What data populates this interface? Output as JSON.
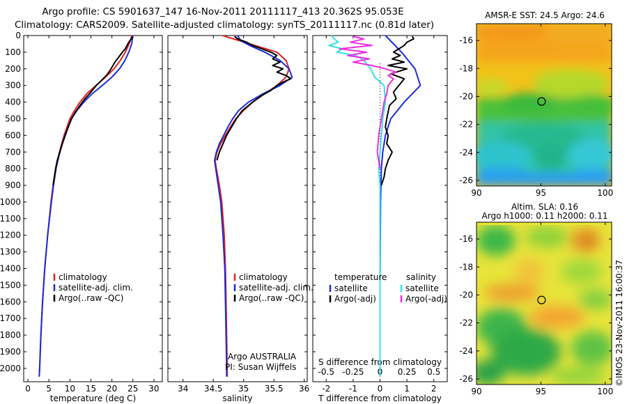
{
  "figure": {
    "title_line1": "Argo profile: CS 5901637_147 16-Nov-2011 20111117_413 20.362S 95.053E",
    "title_line2": "Climatology: CARS2009. Satellite-adjusted climatology: synTS_20111117.nc (0.81d later)",
    "credit": "©IMOS 23-Nov-2011 16:00:37"
  },
  "colors": {
    "climatology": "#e0201c",
    "satellite": "#1a2bd6",
    "argo": "#000000",
    "satellite_s": "#35e0e8",
    "argo_s": "#ee2ee0"
  },
  "chart_data": [
    {
      "type": "line",
      "panel": "temperature",
      "xlabel": "temperature (deg C)",
      "ylabel": "",
      "xlim": [
        -1,
        32
      ],
      "ylim": [
        2080,
        0
      ],
      "xticks": [
        0,
        5,
        10,
        15,
        20,
        25,
        30
      ],
      "yticks": [
        0,
        100,
        200,
        300,
        400,
        500,
        600,
        700,
        800,
        900,
        1000,
        1100,
        1200,
        1300,
        1400,
        1500,
        1600,
        1700,
        1800,
        1900,
        2000
      ],
      "legend": [
        "climatology",
        "satellite-adj. clim.",
        "Argo(..raw -QC)"
      ],
      "series": [
        {
          "name": "climatology",
          "role": "climatology",
          "depth": [
            0,
            50,
            100,
            150,
            200,
            250,
            300,
            350,
            400,
            450,
            500,
            600,
            700,
            800,
            900,
            1000,
            1200,
            1400,
            1600,
            1800,
            2000,
            2050
          ],
          "values": [
            24.8,
            24.1,
            23.2,
            22.0,
            20.5,
            18.5,
            16.2,
            14.0,
            12.4,
            11.1,
            10.0,
            8.6,
            7.5,
            6.6,
            6.0,
            5.5,
            4.7,
            4.0,
            3.5,
            3.1,
            2.8,
            2.7
          ]
        },
        {
          "name": "satellite-adj. clim.",
          "role": "satellite",
          "depth": [
            0,
            50,
            100,
            150,
            200,
            250,
            300,
            350,
            400,
            450,
            500,
            600,
            700,
            800,
            900,
            1000,
            1200,
            1400,
            1600,
            1800,
            2000,
            2050
          ],
          "values": [
            25.0,
            24.7,
            24.0,
            23.1,
            21.8,
            20.0,
            17.7,
            15.3,
            13.3,
            11.7,
            10.4,
            8.8,
            7.6,
            6.7,
            6.1,
            5.6,
            4.7,
            4.0,
            3.5,
            3.1,
            2.8,
            2.7
          ]
        },
        {
          "name": "Argo(..raw -QC)",
          "role": "argo",
          "depth": [
            5,
            20,
            40,
            60,
            80,
            100,
            130,
            160,
            200,
            230,
            260,
            300,
            340,
            380,
            420,
            460,
            500,
            550,
            600,
            650,
            700,
            750,
            800,
            850,
            900
          ],
          "values": [
            24.9,
            24.6,
            24.0,
            23.6,
            23.2,
            22.5,
            21.6,
            20.7,
            19.8,
            19.0,
            17.9,
            16.3,
            15.0,
            13.6,
            12.4,
            11.3,
            10.4,
            9.6,
            8.9,
            8.2,
            7.6,
            7.0,
            6.6,
            6.3,
            6.0
          ]
        }
      ]
    },
    {
      "type": "line",
      "panel": "salinity",
      "xlabel": "salinity",
      "ylabel": "",
      "xlim": [
        33.75,
        36.05
      ],
      "ylim": [
        2080,
        0
      ],
      "xticks": [
        34,
        34.5,
        35,
        35.5,
        36
      ],
      "xtick_labels": [
        "34",
        "34.5",
        "35",
        "35.5",
        "36"
      ],
      "legend": [
        "climatology",
        "satellite-adj. clim.",
        "Argo(..raw -QC)"
      ],
      "annotation": [
        "Argo AUSTRALIA",
        "PI: Susan Wijffels"
      ],
      "series": [
        {
          "name": "climatology",
          "role": "climatology",
          "depth": [
            0,
            50,
            100,
            150,
            200,
            250,
            300,
            350,
            400,
            450,
            500,
            550,
            600,
            650,
            700,
            750,
            800,
            900,
            1000,
            1200,
            1400,
            1600,
            1800,
            2000,
            2050
          ],
          "values": [
            34.65,
            35.1,
            35.55,
            35.7,
            35.75,
            35.7,
            35.55,
            35.35,
            35.15,
            35.0,
            34.87,
            34.78,
            34.7,
            34.62,
            34.56,
            34.53,
            34.55,
            34.6,
            34.64,
            34.68,
            34.7,
            34.71,
            34.72,
            34.73,
            34.73
          ]
        },
        {
          "name": "satellite-adj. clim.",
          "role": "satellite",
          "depth": [
            0,
            30,
            60,
            100,
            150,
            200,
            250,
            300,
            350,
            400,
            450,
            500,
            550,
            600,
            650,
            700,
            750,
            800,
            900,
            1000,
            1200,
            1400,
            1600,
            1800,
            2000,
            2050
          ],
          "values": [
            34.9,
            34.95,
            35.1,
            35.35,
            35.6,
            35.75,
            35.8,
            35.6,
            35.32,
            35.08,
            34.92,
            34.82,
            34.74,
            34.67,
            34.6,
            34.55,
            34.52,
            34.54,
            34.58,
            34.62,
            34.66,
            34.69,
            34.7,
            34.71,
            34.72,
            34.72
          ]
        },
        {
          "name": "Argo(..raw -QC)",
          "role": "argo",
          "depth": [
            5,
            20,
            40,
            60,
            80,
            100,
            120,
            140,
            160,
            180,
            200,
            220,
            240,
            260,
            280,
            300,
            330,
            360,
            400,
            450,
            500,
            550,
            600,
            650,
            700,
            750
          ],
          "values": [
            34.85,
            34.9,
            35.05,
            35.15,
            35.3,
            35.45,
            35.55,
            35.48,
            35.6,
            35.48,
            35.65,
            35.55,
            35.7,
            35.78,
            35.65,
            35.55,
            35.45,
            35.3,
            35.15,
            34.98,
            34.88,
            34.8,
            34.72,
            34.66,
            34.6,
            34.56
          ]
        }
      ]
    },
    {
      "type": "line",
      "panel": "difference",
      "xlabel": "T difference from climatology",
      "xlabel_top": "S difference from climatology",
      "ylabel": "",
      "xlim": [
        -2.5,
        2.5
      ],
      "ylim": [
        2080,
        0
      ],
      "xticks_T": [
        -2,
        -1,
        0,
        1,
        2
      ],
      "xticks_S": [
        -0.5,
        -0.25,
        0,
        0.25,
        0.5
      ],
      "xtick_labels_T": [
        "-2",
        "-1",
        "0",
        "1",
        "2"
      ],
      "xtick_labels_S": [
        "-0.5",
        "-0.25",
        "0",
        "0.25",
        "0.5"
      ],
      "legend_T": {
        "title": "temperature",
        "items": [
          "satellite",
          "Argo(-adj)"
        ]
      },
      "legend_S": {
        "title": "salinity",
        "items": [
          "satellite",
          "Argo(-adj)"
        ]
      },
      "series": [
        {
          "name": "satellite",
          "role": "satellite",
          "group": "temperature",
          "depth": [
            0,
            100,
            200,
            300,
            400,
            500,
            600,
            700,
            800,
            1000,
            1500,
            2000,
            2050
          ],
          "values": [
            0.2,
            0.8,
            1.3,
            1.5,
            0.9,
            0.4,
            0.2,
            0.1,
            0.05,
            0.02,
            0.0,
            0.0,
            0.0
          ]
        },
        {
          "name": "Argo(-adj)",
          "role": "argo",
          "group": "temperature",
          "depth": [
            5,
            20,
            40,
            60,
            80,
            100,
            120,
            140,
            160,
            180,
            200,
            230,
            260,
            300,
            340,
            380,
            420,
            460,
            500,
            550,
            600,
            650,
            700,
            750,
            800,
            850,
            900
          ],
          "values": [
            1.2,
            1.25,
            1.0,
            0.9,
            0.7,
            0.5,
            0.75,
            0.45,
            0.9,
            0.3,
            1.0,
            0.4,
            0.9,
            0.7,
            0.5,
            0.6,
            0.35,
            0.3,
            0.25,
            0.2,
            0.3,
            0.25,
            0.45,
            0.3,
            0.2,
            0.15,
            0.05
          ]
        },
        {
          "name": "satellite",
          "role": "satellite_s",
          "group": "salinity",
          "depth": [
            0,
            20,
            40,
            60,
            80,
            100,
            120,
            150,
            200,
            250,
            300,
            400,
            500,
            600,
            700,
            800,
            900,
            1000,
            1500,
            2000,
            2050
          ],
          "values": [
            -1.8,
            -1.7,
            -1.55,
            -1.9,
            -1.4,
            -1.6,
            -0.9,
            -0.6,
            -0.35,
            -0.2,
            0.15,
            0.2,
            0.1,
            0.05,
            0.0,
            -0.05,
            0.0,
            0.0,
            0.0,
            0.0,
            0.0
          ]
        },
        {
          "name": "Argo(-adj)",
          "role": "argo_s",
          "group": "salinity",
          "depth": [
            5,
            20,
            40,
            60,
            80,
            100,
            120,
            140,
            160,
            180,
            200,
            220,
            240,
            260,
            300,
            350,
            400,
            450,
            500,
            550,
            600,
            700,
            800
          ],
          "values": [
            -1.0,
            -0.6,
            -1.1,
            -0.3,
            -1.5,
            -0.5,
            -1.2,
            -0.4,
            -1.0,
            -0.3,
            0.2,
            0.6,
            0.3,
            0.5,
            0.3,
            0.25,
            0.15,
            0.1,
            0.05,
            0.0,
            -0.05,
            -0.1,
            0.0
          ]
        }
      ]
    },
    {
      "type": "heatmap",
      "panel": "sst_map",
      "title": "AMSR-E SST: 24.5 Argo: 24.6",
      "xlim": [
        90,
        100.5
      ],
      "ylim": [
        -26.4,
        -14.8
      ],
      "xticks": [
        90,
        95,
        100
      ],
      "yticks": [
        -16,
        -18,
        -20,
        -22,
        -24,
        -26
      ],
      "marker": {
        "lon": 95.053,
        "lat": -20.362
      }
    },
    {
      "type": "heatmap",
      "panel": "sla_map",
      "title_line1": "Altim. SLA: 0.16",
      "title_line2": "Argo h1000: 0.11 h2000: 0.11",
      "xlim": [
        90,
        100.5
      ],
      "ylim": [
        -26.4,
        -14.8
      ],
      "xticks": [
        90,
        95,
        100
      ],
      "yticks": [
        -16,
        -18,
        -20,
        -22,
        -24,
        -26
      ],
      "marker": {
        "lon": 95.053,
        "lat": -20.362
      }
    }
  ]
}
